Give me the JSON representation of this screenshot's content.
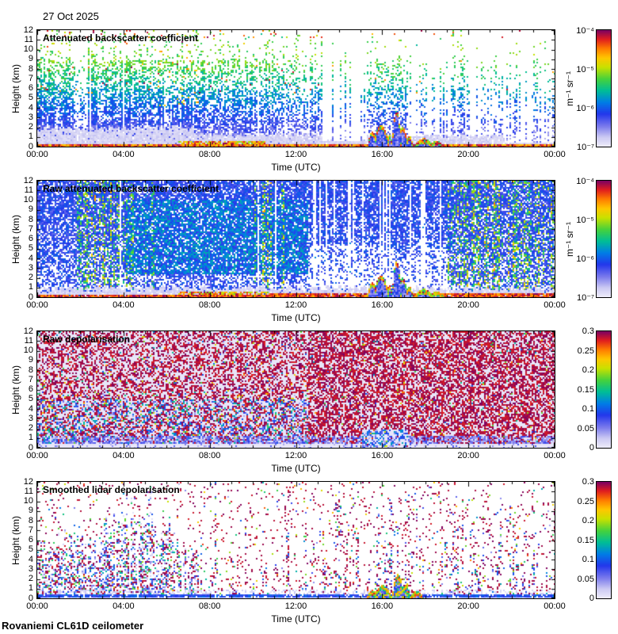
{
  "header": {
    "date": "27 Oct 2025"
  },
  "footer": {
    "instrument": "Rovaniemi CL61D ceilometer"
  },
  "colors": {
    "background": "#ffffff",
    "frame": "#000000",
    "colormap_stops": [
      [
        0.0,
        [
          238,
          236,
          250
        ]
      ],
      [
        0.08,
        [
          204,
          202,
          243
        ]
      ],
      [
        0.18,
        [
          118,
          118,
          236
        ]
      ],
      [
        0.28,
        [
          35,
          55,
          235
        ]
      ],
      [
        0.38,
        [
          0,
          125,
          230
        ]
      ],
      [
        0.48,
        [
          0,
          190,
          150
        ]
      ],
      [
        0.58,
        [
          70,
          210,
          60
        ]
      ],
      [
        0.68,
        [
          200,
          225,
          0
        ]
      ],
      [
        0.76,
        [
          255,
          200,
          0
        ]
      ],
      [
        0.84,
        [
          255,
          125,
          0
        ]
      ],
      [
        0.92,
        [
          225,
          30,
          30
        ]
      ],
      [
        1.0,
        [
          122,
          0,
          100
        ]
      ]
    ]
  },
  "chart_data": [
    {
      "type": "heatmap",
      "title": "Attenuated backscatter coefficient",
      "xlabel": "Time (UTC)",
      "ylabel": "Height (km)",
      "x_ticks": [
        "00:00",
        "04:00",
        "08:00",
        "12:00",
        "16:00",
        "20:00",
        "00:00"
      ],
      "x_range_hours": [
        0,
        24
      ],
      "y_ticks": [
        0,
        1,
        2,
        3,
        4,
        5,
        6,
        7,
        8,
        9,
        10,
        11,
        12
      ],
      "y_range_km": [
        0,
        12
      ],
      "colorbar": {
        "scale": "log",
        "min": 1e-07,
        "max": 0.0001,
        "tick_labels": [
          "10⁻⁴",
          "10⁻⁵",
          "10⁻⁶",
          "10⁻⁷"
        ],
        "unit": "m⁻¹ sr⁻¹"
      },
      "pattern": {
        "kind": "atten",
        "seed": 11,
        "grayTop": [
          [
            0,
            0.3,
            2.0
          ],
          [
            0.3,
            0.55,
            1.3
          ],
          [
            0.55,
            0.635,
            0.7
          ],
          [
            0.635,
            0.9,
            1.2
          ],
          [
            0.9,
            1.001,
            0.5
          ]
        ],
        "colActivity": [
          [
            0,
            0.07,
            0.95
          ],
          [
            0.07,
            0.095,
            0.35
          ],
          [
            0.095,
            0.21,
            1.0
          ],
          [
            0.21,
            0.31,
            0.9
          ],
          [
            0.31,
            0.47,
            0.8
          ],
          [
            0.47,
            0.58,
            0.6
          ],
          [
            0.58,
            0.635,
            0.5
          ],
          [
            0.635,
            0.72,
            0.55
          ],
          [
            0.72,
            0.765,
            0.35
          ],
          [
            0.765,
            0.84,
            0.6
          ],
          [
            0.84,
            1.001,
            0.4
          ]
        ],
        "topKm": [
          [
            0,
            0.07,
            10.5
          ],
          [
            0.07,
            0.095,
            9
          ],
          [
            0.095,
            0.21,
            11.5
          ],
          [
            0.21,
            0.31,
            11
          ],
          [
            0.31,
            0.47,
            10.5
          ],
          [
            0.47,
            0.58,
            10
          ],
          [
            0.58,
            0.635,
            9
          ],
          [
            0.635,
            0.72,
            10
          ],
          [
            0.72,
            0.765,
            9
          ],
          [
            0.765,
            0.84,
            10.5
          ],
          [
            0.84,
            1.001,
            10.5
          ]
        ],
        "gaps": [
          [
            0,
            0.55,
            0.03
          ],
          [
            0.55,
            0.635,
            0.82
          ],
          [
            0.635,
            0.72,
            0.12
          ],
          [
            0.72,
            0.77,
            0.3
          ],
          [
            0.77,
            0.84,
            0.38
          ],
          [
            0.84,
            1.001,
            0.5
          ]
        ],
        "orangeZone": [
          0.2,
          0.31
        ],
        "cloud": [
          [
            0.645,
            0.01,
            1.6
          ],
          [
            0.662,
            0.016,
            2.3
          ],
          [
            0.678,
            0.007,
            1.3
          ],
          [
            0.692,
            0.009,
            3.8
          ],
          [
            0.703,
            0.012,
            2.1
          ],
          [
            0.716,
            0.008,
            1.2
          ],
          [
            0.745,
            0.02,
            0.9
          ],
          [
            0.77,
            0.015,
            0.7
          ]
        ]
      }
    },
    {
      "type": "heatmap",
      "title": "Raw attenuated backscatter coefficient",
      "xlabel": "Time (UTC)",
      "ylabel": "Height (km)",
      "x_ticks": [
        "00:00",
        "04:00",
        "08:00",
        "12:00",
        "16:00",
        "20:00",
        "00:00"
      ],
      "x_range_hours": [
        0,
        24
      ],
      "y_ticks": [
        0,
        1,
        2,
        3,
        4,
        5,
        6,
        7,
        8,
        9,
        10,
        11,
        12
      ],
      "y_range_km": [
        0,
        12
      ],
      "colorbar": {
        "scale": "log",
        "min": 1e-07,
        "max": 0.0001,
        "tick_labels": [
          "10⁻⁴",
          "10⁻⁵",
          "10⁻⁶",
          "10⁻⁷"
        ],
        "unit": "m⁻¹ sr⁻¹"
      },
      "pattern": {
        "kind": "raw",
        "seed": 22,
        "streakZones": [
          [
            0.075,
            0.185,
            0.55
          ],
          [
            0.19,
            0.235,
            0.4
          ],
          [
            0.415,
            0.45,
            0.5
          ],
          [
            0.468,
            0.483,
            0.65
          ],
          [
            0.79,
            1.001,
            0.6
          ]
        ],
        "tealZone": [
          0.17,
          0.52,
          2.5,
          10
        ],
        "quietZone": [
          0.52,
          0.79,
          5.5
        ],
        "cloud": [
          [
            0.645,
            0.01,
            1.6
          ],
          [
            0.662,
            0.016,
            2.3
          ],
          [
            0.678,
            0.007,
            1.3
          ],
          [
            0.692,
            0.009,
            3.8
          ],
          [
            0.703,
            0.012,
            2.1
          ],
          [
            0.716,
            0.008,
            1.2
          ],
          [
            0.745,
            0.02,
            0.9
          ],
          [
            0.77,
            0.015,
            0.7
          ]
        ]
      }
    },
    {
      "type": "heatmap",
      "title": "Raw depolarisation",
      "xlabel": "Time (UTC)",
      "ylabel": "Height (km)",
      "x_ticks": [
        "00:00",
        "04:00",
        "08:00",
        "12:00",
        "16:00",
        "20:00",
        "00:00"
      ],
      "x_range_hours": [
        0,
        24
      ],
      "y_ticks": [
        0,
        1,
        2,
        3,
        4,
        5,
        6,
        7,
        8,
        9,
        10,
        11,
        12
      ],
      "y_range_km": [
        0,
        12
      ],
      "colorbar": {
        "scale": "linear",
        "min": 0,
        "max": 0.3,
        "tick_labels": [
          "0.3",
          "0.25",
          "0.2",
          "0.15",
          "0.1",
          "0.05",
          "0"
        ],
        "unit": ""
      },
      "pattern": {
        "kind": "rawdepol",
        "seed": 33,
        "splitT": 0.52,
        "cloudT": [
          0.625,
          0.715,
          1.9
        ]
      }
    },
    {
      "type": "heatmap",
      "title": "Smoothed lidar depolarisation",
      "xlabel": "Time (UTC)",
      "ylabel": "Height (km)",
      "x_ticks": [
        "00:00",
        "04:00",
        "08:00",
        "12:00",
        "16:00",
        "20:00",
        "00:00"
      ],
      "x_range_hours": [
        0,
        24
      ],
      "y_ticks": [
        0,
        1,
        2,
        3,
        4,
        5,
        6,
        7,
        8,
        9,
        10,
        11,
        12
      ],
      "y_range_km": [
        0,
        12
      ],
      "colorbar": {
        "scale": "linear",
        "min": 0,
        "max": 0.3,
        "tick_labels": [
          "0.3",
          "0.25",
          "0.2",
          "0.15",
          "0.1",
          "0.05",
          "0"
        ],
        "unit": ""
      },
      "pattern": {
        "kind": "smoothdepol",
        "seed": 44,
        "leftProfile": [
          [
            0,
            0.03,
            5.5
          ],
          [
            0.03,
            0.07,
            6.5
          ],
          [
            0.07,
            0.12,
            6.0
          ],
          [
            0.12,
            0.165,
            7.5
          ],
          [
            0.165,
            0.225,
            9.5
          ],
          [
            0.225,
            0.27,
            7.0
          ],
          [
            0.27,
            0.31,
            5.0
          ]
        ],
        "bursts": [
          [
            0.33,
            0.39
          ],
          [
            0.55,
            0.63
          ],
          [
            0.655,
            0.75
          ],
          [
            0.77,
            1.001
          ]
        ],
        "cloud": [
          [
            0.645,
            0.012,
            0.9
          ],
          [
            0.665,
            0.02,
            1.4
          ],
          [
            0.695,
            0.012,
            2.6
          ],
          [
            0.71,
            0.01,
            1.5
          ],
          [
            0.73,
            0.015,
            0.8
          ]
        ]
      }
    }
  ]
}
